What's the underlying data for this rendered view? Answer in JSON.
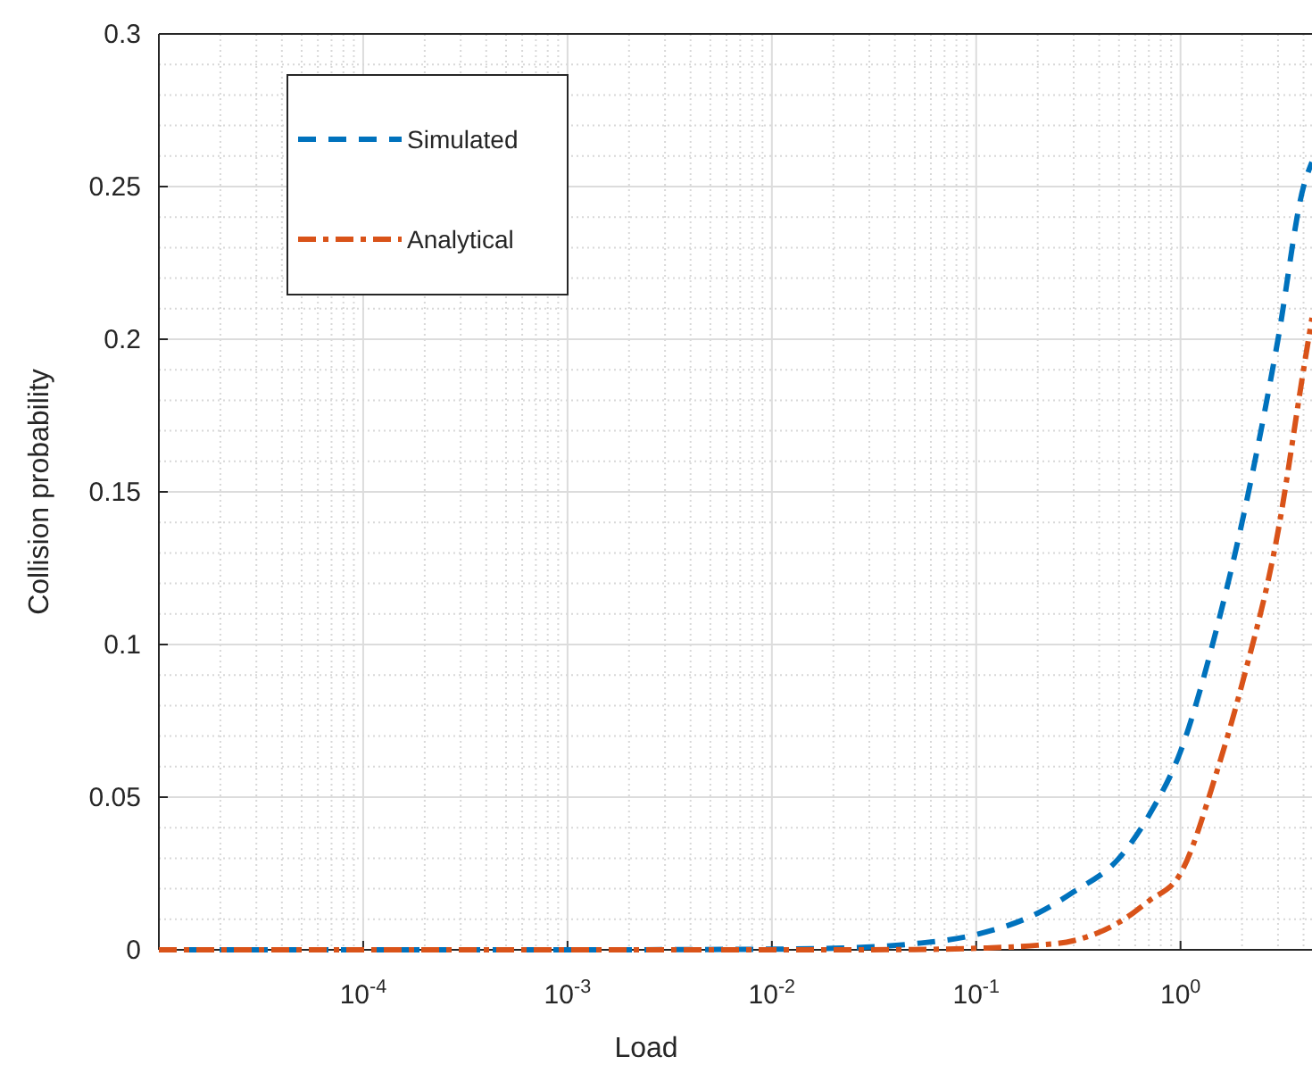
{
  "chart_data": {
    "type": "line",
    "xlabel": "Load",
    "ylabel": "Collision probability",
    "log": "x",
    "xlim": [
      1e-05,
      4.4
    ],
    "ylim": [
      0,
      0.3
    ],
    "xticks": [
      {
        "value": 0.0001,
        "label": "10$^{-4}$"
      },
      {
        "value": 0.001,
        "label": "10$^{-3}$"
      },
      {
        "value": 0.01,
        "label": "10$^{-2}$"
      },
      {
        "value": 0.1,
        "label": "10$^{-1}$"
      },
      {
        "value": 1,
        "label": "10$^{0}$"
      }
    ],
    "yticks": [
      0,
      0.05,
      0.1,
      0.15,
      0.2,
      0.25,
      0.3
    ],
    "grid": true,
    "legend": "top left",
    "series": [
      {
        "name": "Simulated",
        "color": "#0072bd",
        "line_style": "dashed",
        "x": [
          1e-05,
          0.001,
          0.01,
          0.02,
          0.05,
          0.1,
          0.2,
          0.3,
          0.5,
          0.7,
          1,
          1.5,
          2,
          3,
          4,
          4.4
        ],
        "values": [
          0,
          0,
          0.0002,
          0.0005,
          0.002,
          0.005,
          0.012,
          0.019,
          0.03,
          0.044,
          0.065,
          0.105,
          0.14,
          0.2,
          0.25,
          0.258
        ]
      },
      {
        "name": "Analytical",
        "color": "#d95319",
        "line_style": "dashdot",
        "x": [
          1e-05,
          0.001,
          0.01,
          0.02,
          0.05,
          0.1,
          0.2,
          0.3,
          0.5,
          0.7,
          1,
          1.5,
          2,
          3,
          4,
          4.4
        ],
        "values": [
          0,
          0,
          0,
          0,
          0.0001,
          0.0005,
          0.0015,
          0.003,
          0.009,
          0.016,
          0.025,
          0.058,
          0.087,
          0.137,
          0.19,
          0.207
        ]
      }
    ]
  }
}
